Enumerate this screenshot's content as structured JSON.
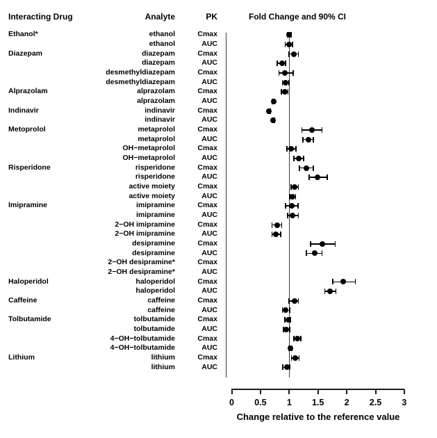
{
  "header": {
    "interacting_drug": "Interacting Drug",
    "analyte": "Analyte",
    "pk": "PK",
    "plot_title": "Fold Change and 90% CI"
  },
  "x_axis": {
    "label": "Change relative to the reference value",
    "ticks": [
      "0",
      "0.5",
      "1",
      "1.5",
      "2",
      "2.5",
      "3"
    ],
    "tick_values": [
      0,
      0.5,
      1,
      1.5,
      2,
      2.5,
      3
    ],
    "range": [
      0,
      3
    ],
    "reference_line": 1
  },
  "chart_data": {
    "type": "scatter",
    "variant": "forest-plot",
    "title": "Fold Change and 90% CI",
    "xlabel": "Change relative to the reference value",
    "xlim": [
      0,
      3
    ],
    "reference_line": 1,
    "grid": false,
    "marker_color": "#000000",
    "rows": [
      {
        "drug": "Ethanol*",
        "analyte": "ethanol",
        "pk": "Cmax",
        "value": 1.0,
        "ci_low": 0.97,
        "ci_high": 1.03
      },
      {
        "drug": "",
        "analyte": "ethanol",
        "pk": "AUC",
        "value": 1.0,
        "ci_low": 0.93,
        "ci_high": 1.06
      },
      {
        "drug": "Diazepam",
        "analyte": "diazepam",
        "pk": "Cmax",
        "value": 1.08,
        "ci_low": 1.0,
        "ci_high": 1.16
      },
      {
        "drug": "",
        "analyte": "diazepam",
        "pk": "AUC",
        "value": 0.87,
        "ci_low": 0.79,
        "ci_high": 0.94
      },
      {
        "drug": "",
        "analyte": "desmethyldiazepam",
        "pk": "Cmax",
        "value": 0.92,
        "ci_low": 0.82,
        "ci_high": 1.07
      },
      {
        "drug": "",
        "analyte": "desmethyldiazepam",
        "pk": "AUC",
        "value": 0.94,
        "ci_low": 0.88,
        "ci_high": 1.0
      },
      {
        "drug": "Alprazolam",
        "analyte": "alprazolam",
        "pk": "Cmax",
        "value": 0.92,
        "ci_low": 0.86,
        "ci_high": 0.98
      },
      {
        "drug": "",
        "analyte": "alprazolam",
        "pk": "AUC",
        "value": 0.73,
        "ci_low": 0.71,
        "ci_high": 0.75
      },
      {
        "drug": "Indinavir",
        "analyte": "indinavir",
        "pk": "Cmax",
        "value": 0.65,
        "ci_low": 0.63,
        "ci_high": 0.67
      },
      {
        "drug": "",
        "analyte": "indinavir",
        "pk": "AUC",
        "value": 0.72,
        "ci_low": 0.7,
        "ci_high": 0.74
      },
      {
        "drug": "Metoprolol",
        "analyte": "metaprolol",
        "pk": "Cmax",
        "value": 1.39,
        "ci_low": 1.22,
        "ci_high": 1.57
      },
      {
        "drug": "",
        "analyte": "metaprolol",
        "pk": "AUC",
        "value": 1.33,
        "ci_low": 1.24,
        "ci_high": 1.42
      },
      {
        "drug": "",
        "analyte": "OH−metaprolol",
        "pk": "Cmax",
        "value": 1.03,
        "ci_low": 0.96,
        "ci_high": 1.12
      },
      {
        "drug": "",
        "analyte": "OH−metaprolol",
        "pk": "AUC",
        "value": 1.16,
        "ci_low": 1.08,
        "ci_high": 1.25
      },
      {
        "drug": "Risperidone",
        "analyte": "risperidone",
        "pk": "Cmax",
        "value": 1.3,
        "ci_low": 1.18,
        "ci_high": 1.42
      },
      {
        "drug": "",
        "analyte": "risperidone",
        "pk": "AUC",
        "value": 1.49,
        "ci_low": 1.35,
        "ci_high": 1.66
      },
      {
        "drug": "",
        "analyte": "active moiety",
        "pk": "Cmax",
        "value": 1.09,
        "ci_low": 1.03,
        "ci_high": 1.16
      },
      {
        "drug": "",
        "analyte": "active moiety",
        "pk": "AUC",
        "value": 1.06,
        "ci_low": 1.01,
        "ci_high": 1.11
      },
      {
        "drug": "Imipramine",
        "analyte": "imipramine",
        "pk": "Cmax",
        "value": 1.05,
        "ci_low": 0.94,
        "ci_high": 1.15
      },
      {
        "drug": "",
        "analyte": "imipramine",
        "pk": "AUC",
        "value": 1.06,
        "ci_low": 0.97,
        "ci_high": 1.16
      },
      {
        "drug": "",
        "analyte": "2−OH imipramine",
        "pk": "Cmax",
        "value": 0.79,
        "ci_low": 0.7,
        "ci_high": 0.87
      },
      {
        "drug": "",
        "analyte": "2−OH imipramine",
        "pk": "AUC",
        "value": 0.77,
        "ci_low": 0.7,
        "ci_high": 0.85
      },
      {
        "drug": "",
        "analyte": "desipramine",
        "pk": "Cmax",
        "value": 1.58,
        "ci_low": 1.37,
        "ci_high": 1.8
      },
      {
        "drug": "",
        "analyte": "desipramine",
        "pk": "AUC",
        "value": 1.44,
        "ci_low": 1.3,
        "ci_high": 1.57
      },
      {
        "drug": "",
        "analyte": "2−OH desipramine*",
        "pk": "Cmax",
        "value": null,
        "ci_low": null,
        "ci_high": null
      },
      {
        "drug": "",
        "analyte": "2−OH desipramine*",
        "pk": "AUC",
        "value": null,
        "ci_low": null,
        "ci_high": null
      },
      {
        "drug": "Haloperidol",
        "analyte": "haloperidol",
        "pk": "Cmax",
        "value": 1.94,
        "ci_low": 1.76,
        "ci_high": 2.15
      },
      {
        "drug": "",
        "analyte": "haloperidol",
        "pk": "AUC",
        "value": 1.71,
        "ci_low": 1.62,
        "ci_high": 1.81
      },
      {
        "drug": "Caffeine",
        "analyte": "caffeine",
        "pk": "Cmax",
        "value": 1.09,
        "ci_low": 1.0,
        "ci_high": 1.16
      },
      {
        "drug": "",
        "analyte": "caffeine",
        "pk": "AUC",
        "value": 0.93,
        "ci_low": 0.88,
        "ci_high": 1.01
      },
      {
        "drug": "Tolbutamide",
        "analyte": "tolbutamide",
        "pk": "Cmax",
        "value": 0.98,
        "ci_low": 0.92,
        "ci_high": 1.02
      },
      {
        "drug": "",
        "analyte": "tolbutamide",
        "pk": "AUC",
        "value": 0.95,
        "ci_low": 0.9,
        "ci_high": 1.01
      },
      {
        "drug": "",
        "analyte": "4−OH−tolbutamide",
        "pk": "Cmax",
        "value": 1.14,
        "ci_low": 1.08,
        "ci_high": 1.2
      },
      {
        "drug": "",
        "analyte": "4−OH−tolbutamide",
        "pk": "AUC",
        "value": 1.02,
        "ci_low": 0.99,
        "ci_high": 1.05
      },
      {
        "drug": "Lithium",
        "analyte": "lithium",
        "pk": "Cmax",
        "value": 1.1,
        "ci_low": 1.04,
        "ci_high": 1.17
      },
      {
        "drug": "",
        "analyte": "lithium",
        "pk": "AUC",
        "value": 0.96,
        "ci_low": 0.89,
        "ci_high": 1.01
      }
    ]
  }
}
